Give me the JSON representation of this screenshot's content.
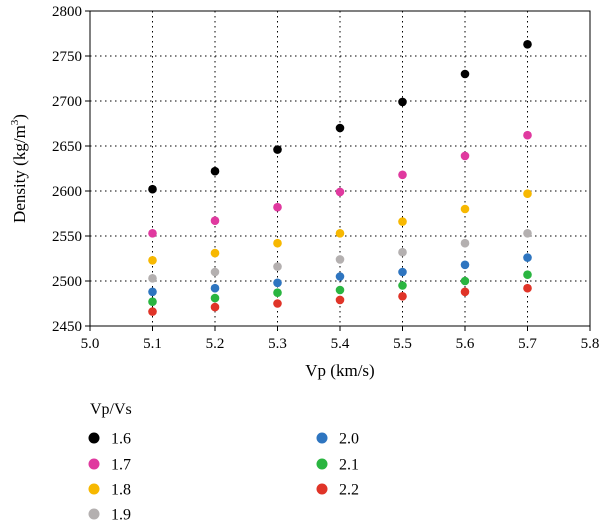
{
  "chart_data": {
    "type": "scatter",
    "xlabel": "Vp (km/s)",
    "ylabel_main": "Density (kg/m",
    "ylabel_sup": "3",
    "ylabel_close": ")",
    "xlim": [
      5.0,
      5.8
    ],
    "ylim": [
      2450,
      2800
    ],
    "x_ticks": [
      "5.0",
      "5.1",
      "5.2",
      "5.3",
      "5.4",
      "5.5",
      "5.6",
      "5.7",
      "5.8"
    ],
    "y_ticks": [
      "2450",
      "2500",
      "2550",
      "2600",
      "2650",
      "2700",
      "2750",
      "2800"
    ],
    "grid": true,
    "legend_title": "Vp/Vs",
    "legend_position": "bottom",
    "x": [
      5.1,
      5.2,
      5.3,
      5.4,
      5.5,
      5.6,
      5.7
    ],
    "series": [
      {
        "name": "1.6",
        "color": "#000000",
        "values": [
          2602,
          2622,
          2646,
          2670,
          2699,
          2730,
          2763
        ]
      },
      {
        "name": "1.7",
        "color": "#e0399f",
        "values": [
          2553,
          2567,
          2582,
          2599,
          2618,
          2639,
          2662
        ]
      },
      {
        "name": "1.8",
        "color": "#f7b800",
        "values": [
          2523,
          2531,
          2542,
          2553,
          2566,
          2580,
          2597
        ]
      },
      {
        "name": "1.9",
        "color": "#b4b0b0",
        "values": [
          2503,
          2510,
          2516,
          2524,
          2532,
          2542,
          2553
        ]
      },
      {
        "name": "2.0",
        "color": "#2e75c0",
        "values": [
          2488,
          2492,
          2498,
          2505,
          2510,
          2518,
          2526
        ]
      },
      {
        "name": "2.1",
        "color": "#2ab540",
        "values": [
          2477,
          2481,
          2487,
          2490,
          2495,
          2500,
          2507
        ]
      },
      {
        "name": "2.2",
        "color": "#e03428",
        "values": [
          2466,
          2471,
          2475,
          2479,
          2483,
          2488,
          2492
        ]
      }
    ]
  }
}
